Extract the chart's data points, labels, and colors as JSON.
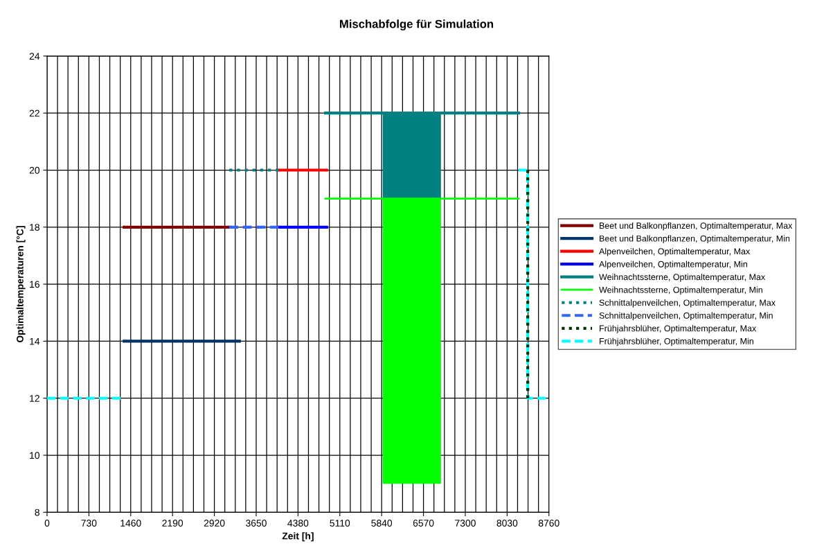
{
  "chart_data": {
    "type": "line",
    "title": "Mischabfolge für Simulation",
    "xlabel": "Zeit [h]",
    "ylabel": "Optimaltemperaturen [°C]",
    "xlim": [
      0,
      8760
    ],
    "ylim": [
      8,
      24
    ],
    "xticks": [
      0,
      {
        "value": 182.5,
        "label": null
      },
      {
        "value": 365,
        "label": null
      },
      {
        "value": 547.5,
        "label": null
      },
      730,
      {
        "value": 912.5,
        "label": null
      },
      {
        "value": 1095,
        "label": null
      },
      {
        "value": 1277.5,
        "label": null
      },
      1460,
      {
        "value": 1642.5,
        "label": null
      },
      {
        "value": 1825,
        "label": null
      },
      {
        "value": 2007.5,
        "label": null
      },
      2190,
      {
        "value": 2372.5,
        "label": null
      },
      {
        "value": 2555,
        "label": null
      },
      {
        "value": 2737.5,
        "label": null
      },
      2920,
      {
        "value": 3102.5,
        "label": null
      },
      {
        "value": 3285,
        "label": null
      },
      {
        "value": 3467.5,
        "label": null
      },
      3650,
      {
        "value": 3832.5,
        "label": null
      },
      {
        "value": 4015,
        "label": null
      },
      {
        "value": 4197.5,
        "label": null
      },
      4380,
      {
        "value": 4562.5,
        "label": null
      },
      {
        "value": 4745,
        "label": null
      },
      {
        "value": 4927.5,
        "label": null
      },
      5110,
      {
        "value": 5292.5,
        "label": null
      },
      {
        "value": 5475,
        "label": null
      },
      {
        "value": 5657.5,
        "label": null
      },
      5840,
      {
        "value": 6022.5,
        "label": null
      },
      {
        "value": 6205,
        "label": null
      },
      {
        "value": 6387.5,
        "label": null
      },
      6570,
      {
        "value": 6752.5,
        "label": null
      },
      {
        "value": 6935,
        "label": null
      },
      {
        "value": 7117.5,
        "label": null
      },
      7300,
      {
        "value": 7482.5,
        "label": null
      },
      {
        "value": 7665,
        "label": null
      },
      {
        "value": 7847.5,
        "label": null
      },
      8030,
      {
        "value": 8212.5,
        "label": null
      },
      {
        "value": 8395,
        "label": null
      },
      {
        "value": 8577.5,
        "label": null
      },
      8760
    ],
    "yticks": [
      8,
      10,
      12,
      14,
      16,
      18,
      20,
      22,
      24
    ],
    "grid": true,
    "legend": "right",
    "line_style": "solid",
    "marker": "none",
    "series": [
      {
        "type": "bar",
        "color": "#00ff00",
        "x": [
          6367.5
        ],
        "base": [
          9
        ],
        "values": [
          10
        ]
      },
      {
        "type": "bar",
        "color": "#008080",
        "x": [
          6367.5
        ],
        "base": [
          19
        ],
        "values": [
          3
        ]
      },
      {
        "name": "Beet und Balkonpflanzen, Optimaltemperatur, Max",
        "color": "#800000",
        "x": [
          1344,
          3190
        ],
        "values": [
          18,
          18
        ]
      },
      {
        "name": "Beet und Balkonpflanzen, Optimaltemperatur, Min",
        "color": "#003366",
        "x": [
          1344,
          3360
        ],
        "values": [
          14,
          14
        ]
      },
      {
        "name": "Alpenveilchen, Optimaltemperatur, Max",
        "color": "#ff0000",
        "x": [
          4040,
          4880
        ],
        "values": [
          20,
          20
        ]
      },
      {
        "name": "Alpenveilchen, Optimaltemperatur, Min",
        "color": "#0000ff",
        "x": [
          4040,
          4880
        ],
        "values": [
          18,
          18
        ]
      },
      {
        "name": "Weihnachtssterne, Optimaltemperatur, Max",
        "color": "#008080",
        "x": [
          4860,
          8230
        ],
        "values": [
          22,
          22
        ]
      },
      {
        "name": "Weihnachtssterne, Optimaltemperatur, Min",
        "color": "#00ff00",
        "x": [
          4860,
          8230
        ],
        "values": [
          19,
          19
        ]
      },
      {
        "name": "Schnittalpenveilchen, Optimaltemperatur, Max",
        "color": "#008080",
        "line_style": "dotted",
        "x": [
          3180,
          4040
        ],
        "values": [
          20,
          20
        ]
      },
      {
        "name": "Schnittalpenveilchen, Optimaltemperatur, Min",
        "color": "#3366ff",
        "line_style": "dashed",
        "x": [
          3180,
          4040
        ],
        "values": [
          18,
          18
        ]
      },
      {
        "name": "Frühjahrsblüher, Optimaltemperatur, Max",
        "color": "#003300",
        "line_style": "dotted",
        "x": [
          8390,
          8390
        ],
        "values": [
          20,
          12
        ]
      },
      {
        "name": "Frühjahrsblüher, Optimaltemperatur, Min",
        "color": "#00ffff",
        "line_style": "dashed",
        "x": [
          0,
          1344,
          null,
          8230,
          8390,
          8390,
          8760
        ],
        "values": [
          12,
          12,
          null,
          20,
          20,
          12,
          12
        ]
      }
    ]
  }
}
